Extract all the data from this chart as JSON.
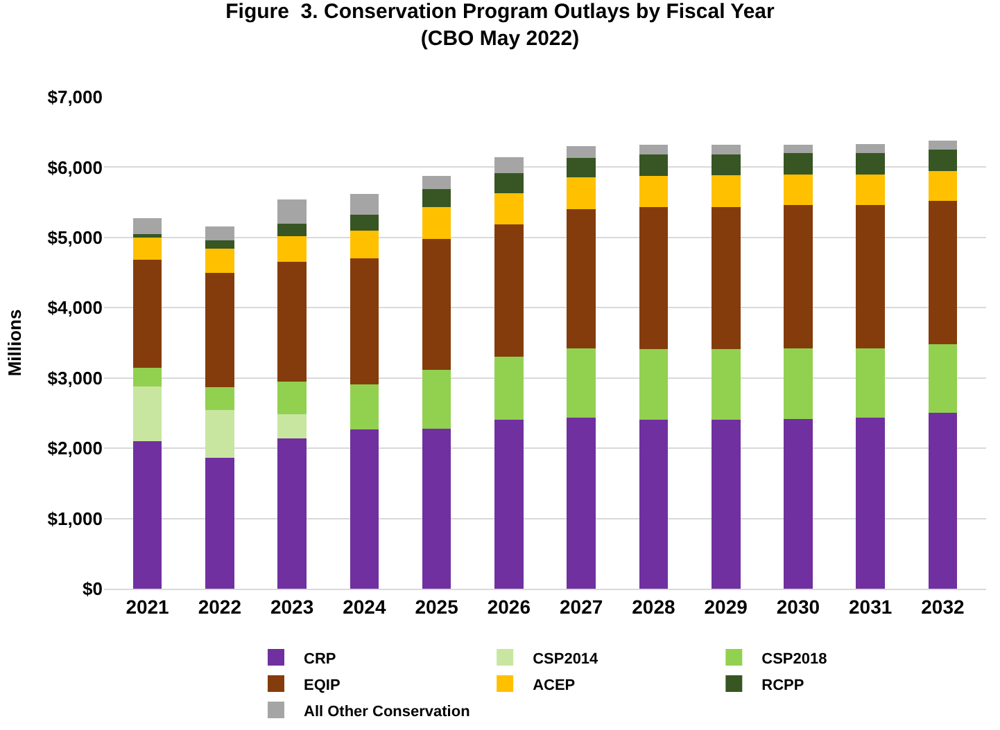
{
  "chart_data": {
    "type": "bar",
    "stacked": true,
    "title": "Figure  3. Conservation Program Outlays by Fiscal Year\n(CBO May 2022)",
    "ylabel": "Millions",
    "categories": [
      "2021",
      "2022",
      "2023",
      "2024",
      "2025",
      "2026",
      "2027",
      "2028",
      "2029",
      "2030",
      "2031",
      "2032"
    ],
    "series": [
      {
        "name": "CRP",
        "color": "#7030a0",
        "values": [
          2100,
          1860,
          2140,
          2270,
          2280,
          2410,
          2440,
          2410,
          2410,
          2420,
          2440,
          2500
        ]
      },
      {
        "name": "CSP2014",
        "color": "#c8e6a0",
        "values": [
          780,
          680,
          340,
          null,
          null,
          null,
          null,
          null,
          null,
          null,
          null,
          null
        ]
      },
      {
        "name": "CSP2018",
        "color": "#92d050",
        "values": [
          270,
          330,
          470,
          640,
          840,
          890,
          980,
          1000,
          1000,
          1000,
          980,
          980
        ]
      },
      {
        "name": "EQIP",
        "color": "#843c0c",
        "values": [
          1530,
          1630,
          1700,
          1790,
          1860,
          1890,
          1980,
          2020,
          2020,
          2040,
          2040,
          2040
        ]
      },
      {
        "name": "ACEP",
        "color": "#ffc000",
        "values": [
          320,
          340,
          370,
          400,
          450,
          440,
          460,
          450,
          460,
          440,
          440,
          430
        ]
      },
      {
        "name": "RCPP",
        "color": "#375623",
        "values": [
          50,
          120,
          180,
          220,
          260,
          290,
          270,
          300,
          290,
          300,
          300,
          300
        ]
      },
      {
        "name": "All Other Conservation",
        "color": "#a5a5a5",
        "values": [
          220,
          200,
          340,
          300,
          190,
          220,
          170,
          140,
          140,
          120,
          130,
          130
        ]
      }
    ],
    "ylim": [
      0,
      7000
    ],
    "yticks": [
      {
        "value": 0,
        "label": "$0"
      },
      {
        "value": 1000,
        "label": "$1,000"
      },
      {
        "value": 2000,
        "label": "$2,000"
      },
      {
        "value": 3000,
        "label": "$3,000"
      },
      {
        "value": 4000,
        "label": "$4,000"
      },
      {
        "value": 5000,
        "label": "$5,000"
      },
      {
        "value": 6000,
        "label": "$6,000"
      },
      {
        "value": 7000,
        "label": "$7,000"
      }
    ],
    "grid": "y",
    "legend": "bottom"
  }
}
